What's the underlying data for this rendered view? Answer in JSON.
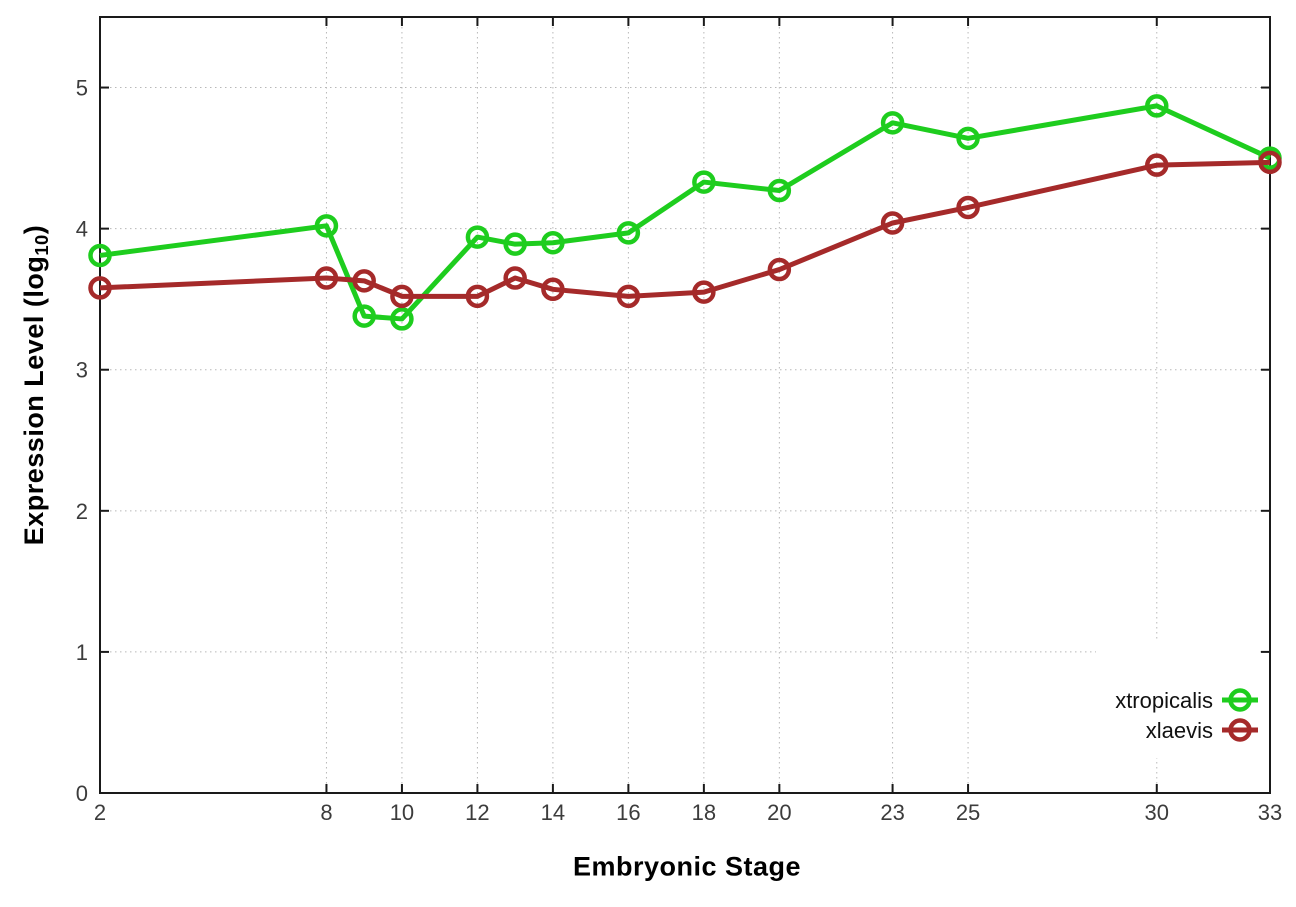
{
  "chart_data": {
    "type": "line",
    "title": "",
    "xlabel": "Embryonic Stage",
    "ylabel": {
      "main": "Expression Level (log",
      "sub": "10",
      "close": ")"
    },
    "x": [
      2,
      8,
      9,
      10,
      12,
      13,
      14,
      16,
      18,
      20,
      23,
      25,
      30,
      33
    ],
    "series": [
      {
        "name": "xtropicalis",
        "color": "#1ecd1e",
        "values": [
          3.81,
          4.02,
          3.38,
          3.36,
          3.94,
          3.89,
          3.9,
          3.97,
          4.33,
          4.27,
          4.75,
          4.64,
          4.87,
          4.5
        ]
      },
      {
        "name": "xlaevis",
        "color": "#a52a2a",
        "values": [
          3.58,
          3.65,
          3.63,
          3.52,
          3.52,
          3.65,
          3.57,
          3.52,
          3.55,
          3.71,
          4.04,
          4.15,
          4.45,
          4.47
        ]
      }
    ],
    "x_ticks": [
      2,
      8,
      10,
      12,
      14,
      16,
      18,
      20,
      23,
      25,
      30,
      33
    ],
    "y_ticks": [
      0,
      1,
      2,
      3,
      4,
      5
    ],
    "xlim": [
      2,
      33
    ],
    "ylim": [
      0,
      5.5
    ],
    "grid": true,
    "marker": "open-circle",
    "legend_position": "bottom-right",
    "colors": {
      "border": "#1a1a1a",
      "grid": "#b8b8b8",
      "tick_label": "#3c3c3c",
      "legend_text": "#111111",
      "background": "#ffffff"
    }
  }
}
